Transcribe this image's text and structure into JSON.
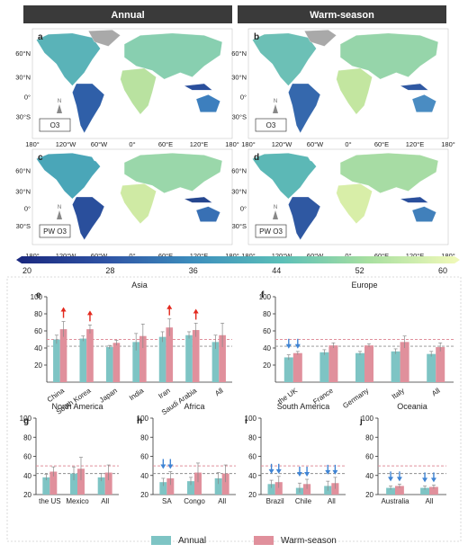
{
  "header": {
    "left": "Annual",
    "right": "Warm-season"
  },
  "maps": {
    "lat_labels": [
      "60°N",
      "30°N",
      "0°",
      "30°S"
    ],
    "lon_labels": [
      "180°",
      "120°W",
      "60°W",
      "0°",
      "60°E",
      "120°E",
      "180°"
    ],
    "panels": [
      {
        "letter": "a",
        "legend": "O3"
      },
      {
        "letter": "b",
        "legend": "O3"
      },
      {
        "letter": "c",
        "legend": "PW O3"
      },
      {
        "letter": "d",
        "legend": "PW O3"
      }
    ]
  },
  "colorbar": {
    "ticks": [
      "20",
      "28",
      "36",
      "44",
      "52",
      "60"
    ],
    "range": [
      20,
      60
    ],
    "colors": [
      "#1b2a80",
      "#2f54a5",
      "#3d8fbd",
      "#5bbfb8",
      "#a7dfa0",
      "#eef8b8"
    ]
  },
  "colors": {
    "annual": "#7ec4c4",
    "warm": "#e0909c",
    "up_arrow": "#e3291e",
    "down_arrow": "#3f84d4",
    "dashed_gray": "#8f8f8f",
    "dashed_red": "#e0909c",
    "ocean": "#ffffff",
    "nodata": "#a9a9a9"
  },
  "chart_data": [
    {
      "type": "bar",
      "letter": "e",
      "title": "Asia",
      "ylim": [
        0,
        100
      ],
      "yticks": [
        20,
        40,
        60,
        80,
        100
      ],
      "ref_lines": [
        42,
        50
      ],
      "categories": [
        "China",
        "South Korea",
        "Japan",
        "India",
        "Iran",
        "Saudi Arabia",
        "All"
      ],
      "series": [
        {
          "name": "Annual",
          "values": [
            50,
            51,
            41,
            47,
            53,
            55,
            47
          ],
          "err": [
            5,
            3,
            2,
            10,
            6,
            4,
            8
          ]
        },
        {
          "name": "Warm-season",
          "values": [
            62,
            62,
            46,
            54,
            64,
            61,
            55
          ],
          "err": [
            9,
            5,
            3,
            14,
            10,
            8,
            14
          ]
        }
      ],
      "arrows": [
        "up",
        "up",
        "",
        "",
        "up",
        "up",
        ""
      ]
    },
    {
      "type": "bar",
      "letter": "f",
      "title": "Europe",
      "ylim": [
        0,
        100
      ],
      "yticks": [
        20,
        40,
        60,
        80,
        100
      ],
      "ref_lines": [
        42,
        50
      ],
      "categories": [
        "the UK",
        "France",
        "Germany",
        "Italy",
        "All"
      ],
      "series": [
        {
          "name": "Annual",
          "values": [
            29,
            35,
            34,
            36,
            33
          ],
          "err": [
            3,
            3,
            2,
            3,
            3
          ]
        },
        {
          "name": "Warm-season",
          "values": [
            34,
            43,
            43,
            47,
            41
          ],
          "err": [
            2,
            3,
            2,
            7,
            5
          ]
        }
      ],
      "arrows": [
        "down",
        "",
        "",
        "",
        ""
      ]
    },
    {
      "type": "bar",
      "letter": "g",
      "title": "North America",
      "ylim": [
        20,
        100
      ],
      "yticks": [
        20,
        40,
        60,
        80,
        100
      ],
      "ref_lines": [
        42,
        50
      ],
      "categories": [
        "the US",
        "Mexico",
        "All"
      ],
      "series": [
        {
          "name": "Annual",
          "values": [
            38,
            42,
            38
          ],
          "err": [
            3,
            7,
            4
          ]
        },
        {
          "name": "Warm-season",
          "values": [
            44,
            47,
            43
          ],
          "err": [
            5,
            12,
            8
          ]
        }
      ],
      "arrows": [
        "",
        "",
        ""
      ]
    },
    {
      "type": "bar",
      "letter": "h",
      "title": "Africa",
      "ylim": [
        20,
        100
      ],
      "yticks": [
        20,
        40,
        60,
        80,
        100
      ],
      "ref_lines": [
        42,
        50
      ],
      "categories": [
        "SA",
        "Congo",
        "All"
      ],
      "series": [
        {
          "name": "Annual",
          "values": [
            33,
            34,
            37
          ],
          "err": [
            4,
            4,
            6
          ]
        },
        {
          "name": "Warm-season",
          "values": [
            37,
            43,
            42
          ],
          "err": [
            7,
            10,
            9
          ]
        }
      ],
      "arrows": [
        "down",
        "",
        ""
      ]
    },
    {
      "type": "bar",
      "letter": "i",
      "title": "South America",
      "ylim": [
        20,
        100
      ],
      "yticks": [
        20,
        40,
        60,
        80,
        100
      ],
      "ref_lines": [
        42,
        50
      ],
      "categories": [
        "Brazil",
        "Chile",
        "All"
      ],
      "series": [
        {
          "name": "Annual",
          "values": [
            31,
            27,
            29
          ],
          "err": [
            4,
            5,
            5
          ]
        },
        {
          "name": "Warm-season",
          "values": [
            33,
            31,
            32
          ],
          "err": [
            6,
            5,
            6
          ]
        }
      ],
      "arrows": [
        "down",
        "down",
        "down"
      ]
    },
    {
      "type": "bar",
      "letter": "j",
      "title": "Oceania",
      "ylim": [
        20,
        100
      ],
      "yticks": [
        20,
        40,
        60,
        80,
        100
      ],
      "ref_lines": [
        42,
        50
      ],
      "categories": [
        "Australia",
        "All"
      ],
      "series": [
        {
          "name": "Annual",
          "values": [
            27,
            27
          ],
          "err": [
            2,
            2
          ]
        },
        {
          "name": "Warm-season",
          "values": [
            29,
            28
          ],
          "err": [
            2,
            2
          ]
        }
      ],
      "arrows": [
        "down",
        "down"
      ]
    }
  ],
  "legend": {
    "annual": "Annual",
    "warm": "Warm-season"
  }
}
